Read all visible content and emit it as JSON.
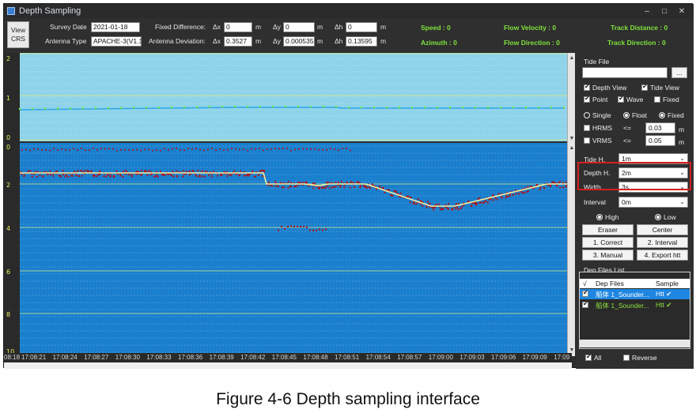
{
  "window": {
    "title": "Depth Sampling",
    "controls": [
      "–",
      "□",
      "✕"
    ]
  },
  "header": {
    "view_crs": [
      "View",
      "CRS"
    ],
    "survey_date_label": "Survey Date",
    "survey_date": "2021-01-18",
    "antenna_type_label": "Antenna Type",
    "antenna_type": "APACHE-3(V1.1)",
    "fixed_diff_label": "Fixed Difference:",
    "antenna_dev_label": "Antenna Deviation:",
    "dx_label": "Δx",
    "dy_label": "Δy",
    "dh_label": "Δh",
    "unit_m": "m",
    "fixed_dx": "0",
    "fixed_dy": "0",
    "fixed_dh": "0",
    "dev_dx": "0.3527",
    "dev_dy": "0.000535",
    "dev_dh": "0.13595",
    "speed": "Speed :  0",
    "azimuth": "Azimuth :  0",
    "flow_velocity": "Flow Velocity :  0",
    "flow_direction": "Flow Direction :  0",
    "track_distance": "Track Distance :  0",
    "track_direction": "Track Direction :  0"
  },
  "chart": {
    "top_ticks": [
      "2",
      "1",
      "0"
    ],
    "bottom_ticks": [
      "0",
      "2",
      "4",
      "6",
      "8",
      "10"
    ],
    "times": [
      "08:18",
      "17:08:21",
      "17:08:24",
      "17:08:27",
      "17:08:30",
      "17:08:33",
      "17:08:36",
      "17:08:39",
      "17:08:42",
      "17:08:45",
      "17:08:48",
      "17:08:51",
      "17:08:54",
      "17:08:57",
      "17:09:00",
      "17:09:03",
      "17:09:06",
      "17:09:09",
      "17:09"
    ],
    "colors": {
      "tide_bg": "#8ed3ea",
      "depth_bg": "#1a7fcd",
      "tide_line": "#2aa6e8",
      "tide_points": "#7ce33a",
      "depth_line": "#f2f2a0",
      "sounding": "#b0101a"
    }
  },
  "panel": {
    "tide_file_label": "Tide File",
    "tide_file_value": "",
    "browse_button": "...",
    "depth_view": "Depth View",
    "tide_view": "Tide View",
    "point": "Point",
    "wave": "Wave",
    "fixed": "Fixed",
    "single": "Single",
    "float": "Float",
    "fixed_radio": "Fixed",
    "hrms": "HRMS",
    "vrms": "VRMS",
    "le": "<=",
    "hrms_value": "0.03",
    "vrms_value": "0.05",
    "unit_m": "m",
    "tide_h_label": "Tide H.",
    "tide_h": "1m",
    "depth_h_label": "Depth H.",
    "depth_h": "2m",
    "width_label": "Width",
    "width": "3s",
    "interval_label": "Interval",
    "interval": "0m",
    "high": "High",
    "low": "Low",
    "eraser": "Eraser",
    "center": "Center",
    "correct": "1. Correct",
    "interval_btn": "2. Interval",
    "manual": "3. Manual",
    "export": "4. Export htt",
    "dep_files_label": "Dep Files List",
    "col_check": "√",
    "col_files": "Dep Files",
    "col_sample": "Sample",
    "files": [
      {
        "name": "船体 1_Sounder...",
        "sample": "Htt ✔"
      },
      {
        "name": "船体 1_Sounder...",
        "sample": "Htt ✔"
      }
    ],
    "all": "All",
    "reverse": "Reverse"
  },
  "caption": "Figure 4-6 Depth sampling interface"
}
